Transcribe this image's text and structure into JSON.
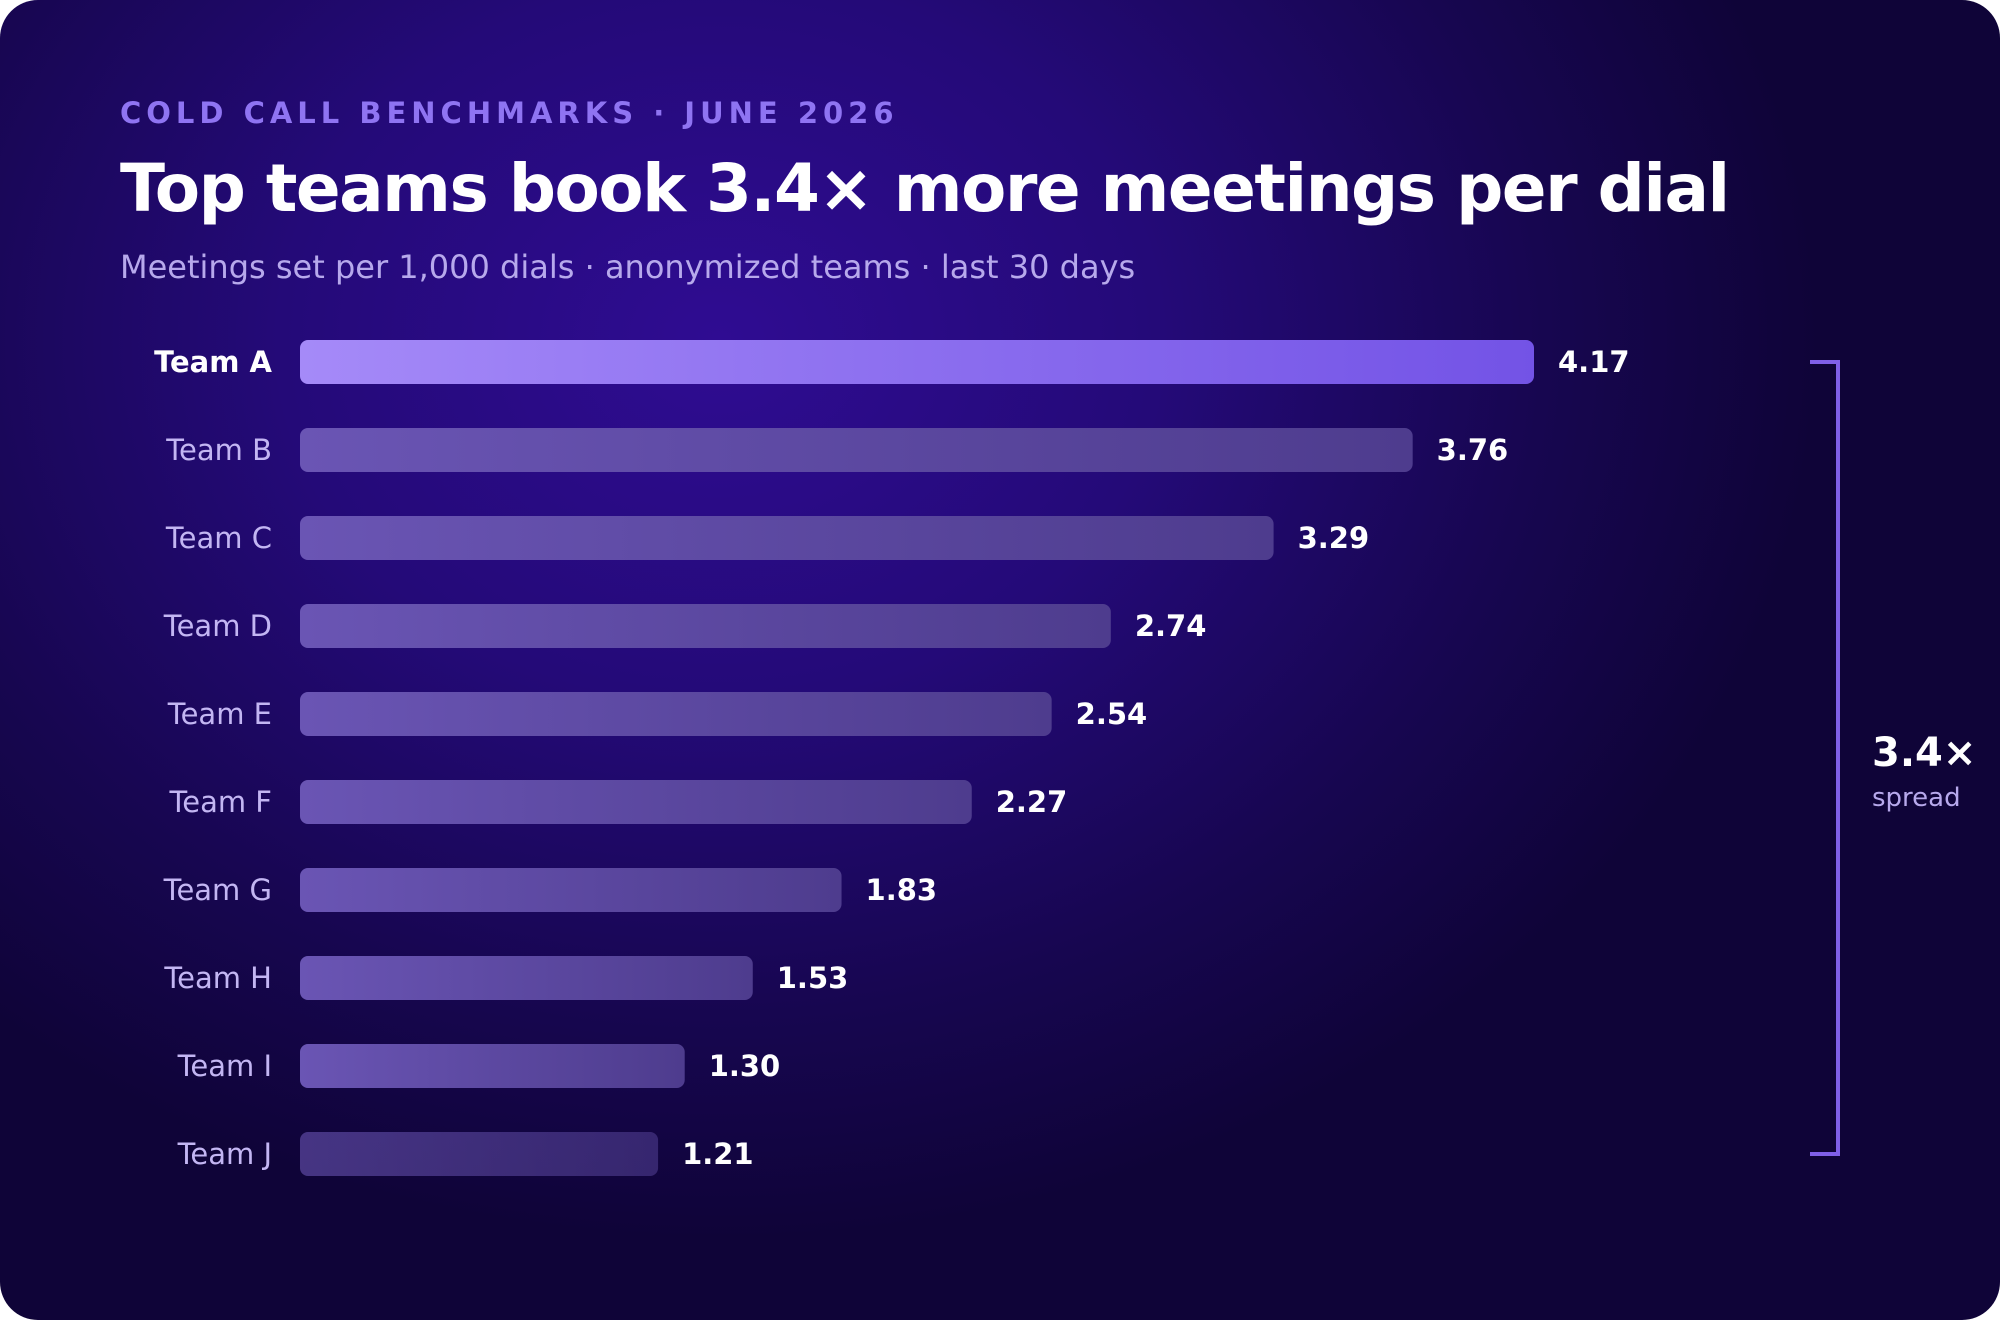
{
  "header": {
    "eyebrow": "COLD CALL BENCHMARKS · JUNE 2026",
    "title": "Top teams book 3.4× more meetings per dial",
    "subtitle": "Meetings set per 1,000 dials · anonymized teams · last 30 days"
  },
  "colors": {
    "background": "#240a78",
    "top_bar_start": "#a58af8",
    "top_bar_end": "#7353e6",
    "bar": "#5e4aa6",
    "bracket": "#8060e8"
  },
  "chart_data": {
    "type": "bar",
    "orientation": "horizontal",
    "categories": [
      "Team A",
      "Team B",
      "Team C",
      "Team D",
      "Team E",
      "Team F",
      "Team G",
      "Team H",
      "Team I",
      "Team J"
    ],
    "values": [
      4.17,
      3.76,
      3.29,
      2.74,
      2.54,
      2.27,
      1.83,
      1.53,
      1.3,
      1.21
    ],
    "value_labels": [
      "4.17",
      "3.76",
      "3.29",
      "2.74",
      "2.54",
      "2.27",
      "1.83",
      "1.53",
      "1.30",
      "1.21"
    ],
    "highlighted_category": "Team A",
    "xlim": [
      0,
      4.17
    ],
    "grid": false,
    "legend": "none",
    "annotation": {
      "value": "3.4×",
      "caption": "spread"
    }
  }
}
